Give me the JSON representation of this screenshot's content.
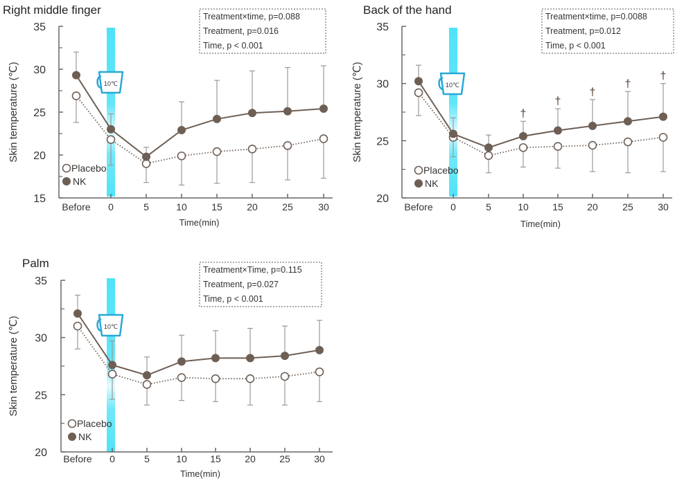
{
  "chart_data": [
    {
      "type": "line",
      "title": "Right middle finger",
      "xlabel": "Time(min)",
      "ylabel": "Skin temperature (℃)",
      "categories": [
        "Before",
        "0",
        "5",
        "10",
        "15",
        "20",
        "25",
        "30"
      ],
      "ylim": [
        15,
        35
      ],
      "yticks": [
        "15",
        "20",
        "25",
        "30",
        "35"
      ],
      "stats": [
        "Treatment×time, p=0.088",
        "Treatment, p=0.016",
        "Time, p < 0.001"
      ],
      "cup_label": "10℃",
      "daggers": [],
      "dagger_symbol": "†",
      "series": [
        {
          "name": "Placebo",
          "style": "open",
          "values": [
            26.9,
            21.8,
            19.0,
            19.9,
            20.4,
            20.7,
            21.1,
            21.9
          ],
          "errors": [
            3.1,
            3.0,
            2.2,
            3.4,
            3.7,
            3.9,
            4.0,
            4.6
          ]
        },
        {
          "name": "NK",
          "style": "filled",
          "values": [
            29.3,
            23.0,
            19.8,
            22.9,
            24.2,
            24.9,
            25.1,
            25.4
          ],
          "errors": [
            2.7,
            1.8,
            1.1,
            3.3,
            4.5,
            4.9,
            5.1,
            5.0
          ]
        }
      ],
      "colors": {
        "nk": "#6e5f55",
        "line": "#6e5f55",
        "axis": "#666666",
        "cup": "#29a8d6",
        "bar": "#4fe3f8"
      }
    },
    {
      "type": "line",
      "title": "Back of the hand",
      "xlabel": "Time(min)",
      "ylabel": "Skin temperature (℃)",
      "categories": [
        "Before",
        "0",
        "5",
        "10",
        "15",
        "20",
        "25",
        "30"
      ],
      "ylim": [
        20,
        35
      ],
      "yticks": [
        "20",
        "25",
        "30",
        "35"
      ],
      "stats": [
        "Treatment×time, p=0.0088",
        "Treatment, p=0.012",
        "Time, p < 0.001"
      ],
      "cup_label": "10℃",
      "daggers": [
        3,
        4,
        5,
        6,
        7
      ],
      "dagger_symbol": "†",
      "series": [
        {
          "name": "Placebo",
          "style": "open",
          "values": [
            29.2,
            25.3,
            23.7,
            24.4,
            24.5,
            24.6,
            24.9,
            25.3
          ],
          "errors": [
            2.0,
            1.7,
            1.5,
            1.7,
            1.9,
            2.3,
            2.7,
            3.0
          ]
        },
        {
          "name": "NK",
          "style": "filled",
          "values": [
            30.2,
            25.6,
            24.4,
            25.4,
            25.9,
            26.3,
            26.7,
            27.1
          ],
          "errors": [
            1.4,
            1.4,
            1.1,
            1.3,
            1.9,
            2.3,
            2.6,
            2.9
          ]
        }
      ],
      "colors": {
        "nk": "#6e5f55",
        "line": "#6e5f55",
        "axis": "#666666",
        "cup": "#29a8d6",
        "bar": "#4fe3f8"
      }
    },
    {
      "type": "line",
      "title": "Palm",
      "xlabel": "Time(min)",
      "ylabel": "Skin temperature (℃)",
      "categories": [
        "Before",
        "0",
        "5",
        "10",
        "15",
        "20",
        "25",
        "30"
      ],
      "ylim": [
        20,
        35
      ],
      "yticks": [
        "20",
        "25",
        "30",
        "35"
      ],
      "stats": [
        "Treatment×Time, p=0.115",
        "Treatment, p=0.027",
        "Time, p < 0.001"
      ],
      "cup_label": "10℃",
      "daggers": [],
      "dagger_symbol": "†",
      "series": [
        {
          "name": "Placebo",
          "style": "open",
          "values": [
            31.0,
            26.8,
            25.9,
            26.5,
            26.4,
            26.4,
            26.6,
            27.0
          ],
          "errors": [
            2.0,
            2.2,
            1.8,
            2.0,
            2.0,
            2.3,
            2.5,
            2.6
          ]
        },
        {
          "name": "NK",
          "style": "filled",
          "values": [
            32.1,
            27.6,
            26.7,
            27.9,
            28.2,
            28.2,
            28.4,
            28.9
          ],
          "errors": [
            1.6,
            2.1,
            1.6,
            2.3,
            2.4,
            2.6,
            2.6,
            2.6
          ]
        }
      ],
      "colors": {
        "nk": "#6e5f55",
        "line": "#6e5f55",
        "axis": "#666666",
        "cup": "#29a8d6",
        "bar": "#4fe3f8"
      }
    }
  ]
}
